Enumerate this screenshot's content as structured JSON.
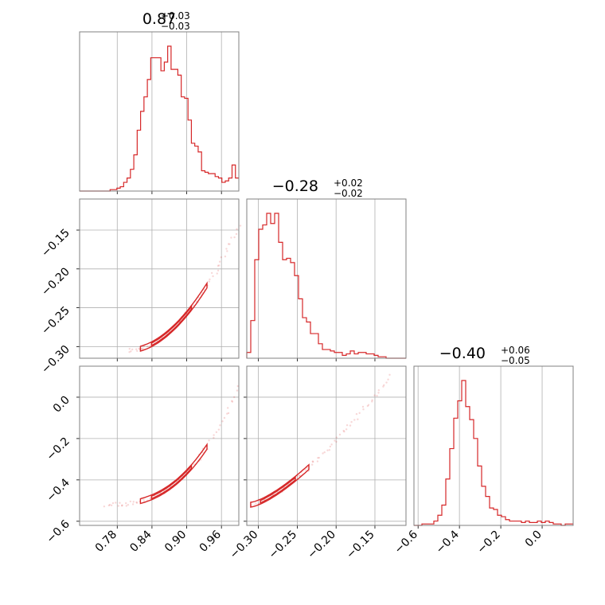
{
  "chart_data": {
    "type": "corner",
    "color": "#d62728",
    "parameters": [
      {
        "title_value": "0.87",
        "title_plus": "+0.03",
        "title_minus": "−0.03",
        "range": [
          0.715,
          0.99
        ],
        "ticks": [
          0.78,
          0.84,
          0.9,
          0.96
        ],
        "tick_labels": [
          "0.78",
          "0.84",
          "0.90",
          "0.96"
        ],
        "histogram": [
          0.0,
          0.0,
          0.0,
          0.0,
          0.0,
          0.0,
          0.0,
          0.0,
          0.0,
          0.01,
          0.01,
          0.02,
          0.03,
          0.06,
          0.09,
          0.15,
          0.25,
          0.42,
          0.55,
          0.65,
          0.77,
          0.92,
          0.92,
          0.92,
          0.83,
          0.89,
          1.0,
          0.84,
          0.84,
          0.8,
          0.65,
          0.64,
          0.49,
          0.33,
          0.31,
          0.27,
          0.14,
          0.13,
          0.12,
          0.12,
          0.1,
          0.09,
          0.06,
          0.07,
          0.09,
          0.18,
          0.09
        ]
      },
      {
        "title_value": "−0.28",
        "title_plus": "+0.02",
        "title_minus": "−0.02",
        "range": [
          -0.315,
          -0.11
        ],
        "ticks": [
          -0.3,
          -0.25,
          -0.2,
          -0.15
        ],
        "tick_labels": [
          "−0.30",
          "−0.25",
          "−0.20",
          "−0.15"
        ],
        "histogram": [
          0.04,
          0.26,
          0.68,
          0.89,
          0.92,
          1.0,
          0.93,
          1.0,
          0.8,
          0.68,
          0.69,
          0.66,
          0.57,
          0.41,
          0.28,
          0.25,
          0.17,
          0.17,
          0.1,
          0.06,
          0.06,
          0.05,
          0.04,
          0.04,
          0.02,
          0.03,
          0.05,
          0.03,
          0.04,
          0.04,
          0.03,
          0.03,
          0.02,
          0.01,
          0.01,
          0.0,
          0.0,
          0.0,
          0.0,
          0.0
        ]
      },
      {
        "title_value": "−0.40",
        "title_plus": "+0.06",
        "title_minus": "−0.05",
        "range": [
          -0.62,
          0.15
        ],
        "ticks": [
          -0.6,
          -0.4,
          -0.2,
          0.0
        ],
        "tick_labels": [
          "−0.6",
          "−0.4",
          "−0.2",
          "0.0"
        ],
        "histogram": [
          0.0,
          0.0,
          0.01,
          0.01,
          0.01,
          0.03,
          0.07,
          0.14,
          0.32,
          0.53,
          0.74,
          0.86,
          1.0,
          0.82,
          0.73,
          0.6,
          0.41,
          0.27,
          0.2,
          0.12,
          0.11,
          0.07,
          0.06,
          0.04,
          0.03,
          0.03,
          0.03,
          0.02,
          0.03,
          0.02,
          0.02,
          0.03,
          0.02,
          0.03,
          0.02,
          0.01,
          0.01,
          0.0,
          0.01,
          0.01
        ]
      }
    ],
    "tick_labels_y": {
      "row1": [
        "−0.15",
        "−0.20",
        "−0.25",
        "−0.30"
      ],
      "row2": [
        "0.0",
        "−0.2",
        "−0.4",
        "−0.6"
      ]
    }
  }
}
